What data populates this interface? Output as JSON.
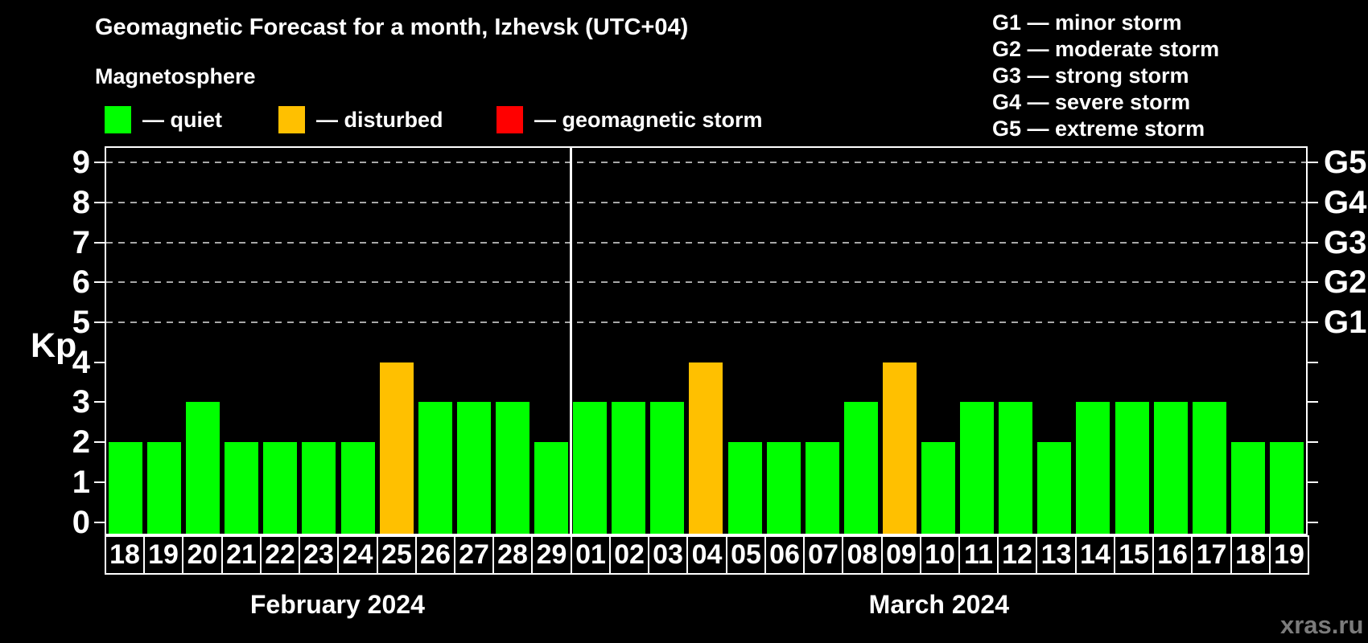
{
  "title": "Geomagnetic Forecast for a month, Izhevsk (UTC+04)",
  "subtitle": "Magnetosphere",
  "magnetosphere_legend": [
    {
      "name": "quiet",
      "label": "— quiet",
      "color": "#00ff00"
    },
    {
      "name": "disturbed",
      "label": "— disturbed",
      "color": "#ffc000"
    },
    {
      "name": "storm",
      "label": "— geomagnetic storm",
      "color": "#ff0000"
    }
  ],
  "g_scale_legend": [
    {
      "label": "G1 — minor storm"
    },
    {
      "label": "G2 — moderate storm"
    },
    {
      "label": "G3 — strong storm"
    },
    {
      "label": "G4 — severe storm"
    },
    {
      "label": "G5 — extreme storm"
    }
  ],
  "watermark": "xras.ru",
  "chart_data": {
    "type": "bar",
    "title": "Geomagnetic Forecast for a month, Izhevsk (UTC+04)",
    "ylabel": "Kp",
    "ylim": [
      0,
      9.6
    ],
    "y_ticks": [
      0,
      1,
      2,
      3,
      4,
      5,
      6,
      7,
      8,
      9
    ],
    "gridlines_at_kp": [
      5,
      6,
      7,
      8,
      9
    ],
    "grid": "dashed",
    "legend_position": "top-left and top-right",
    "right_axis_labels": [
      {
        "kp": 5,
        "text": "G1"
      },
      {
        "kp": 6,
        "text": "G2"
      },
      {
        "kp": 7,
        "text": "G3"
      },
      {
        "kp": 8,
        "text": "G4"
      },
      {
        "kp": 9,
        "text": "G5"
      }
    ],
    "colors": {
      "quiet": "#00ff00",
      "disturbed": "#ffc000",
      "storm": "#ff0000"
    },
    "months": [
      {
        "label": "February 2024",
        "days": [
          {
            "date": "18",
            "kp": 2,
            "state": "quiet"
          },
          {
            "date": "19",
            "kp": 2,
            "state": "quiet"
          },
          {
            "date": "20",
            "kp": 3,
            "state": "quiet"
          },
          {
            "date": "21",
            "kp": 2,
            "state": "quiet"
          },
          {
            "date": "22",
            "kp": 2,
            "state": "quiet"
          },
          {
            "date": "23",
            "kp": 2,
            "state": "quiet"
          },
          {
            "date": "24",
            "kp": 2,
            "state": "quiet"
          },
          {
            "date": "25",
            "kp": 4,
            "state": "disturbed"
          },
          {
            "date": "26",
            "kp": 3,
            "state": "quiet"
          },
          {
            "date": "27",
            "kp": 3,
            "state": "quiet"
          },
          {
            "date": "28",
            "kp": 3,
            "state": "quiet"
          },
          {
            "date": "29",
            "kp": 2,
            "state": "quiet"
          }
        ]
      },
      {
        "label": "March 2024",
        "days": [
          {
            "date": "01",
            "kp": 3,
            "state": "quiet"
          },
          {
            "date": "02",
            "kp": 3,
            "state": "quiet"
          },
          {
            "date": "03",
            "kp": 3,
            "state": "quiet"
          },
          {
            "date": "04",
            "kp": 4,
            "state": "disturbed"
          },
          {
            "date": "05",
            "kp": 2,
            "state": "quiet"
          },
          {
            "date": "06",
            "kp": 2,
            "state": "quiet"
          },
          {
            "date": "07",
            "kp": 2,
            "state": "quiet"
          },
          {
            "date": "08",
            "kp": 3,
            "state": "quiet"
          },
          {
            "date": "09",
            "kp": 4,
            "state": "disturbed"
          },
          {
            "date": "10",
            "kp": 2,
            "state": "quiet"
          },
          {
            "date": "11",
            "kp": 3,
            "state": "quiet"
          },
          {
            "date": "12",
            "kp": 3,
            "state": "quiet"
          },
          {
            "date": "13",
            "kp": 2,
            "state": "quiet"
          },
          {
            "date": "14",
            "kp": 3,
            "state": "quiet"
          },
          {
            "date": "15",
            "kp": 3,
            "state": "quiet"
          },
          {
            "date": "16",
            "kp": 3,
            "state": "quiet"
          },
          {
            "date": "17",
            "kp": 3,
            "state": "quiet"
          },
          {
            "date": "18",
            "kp": 2,
            "state": "quiet"
          },
          {
            "date": "19",
            "kp": 2,
            "state": "quiet"
          }
        ]
      }
    ]
  }
}
